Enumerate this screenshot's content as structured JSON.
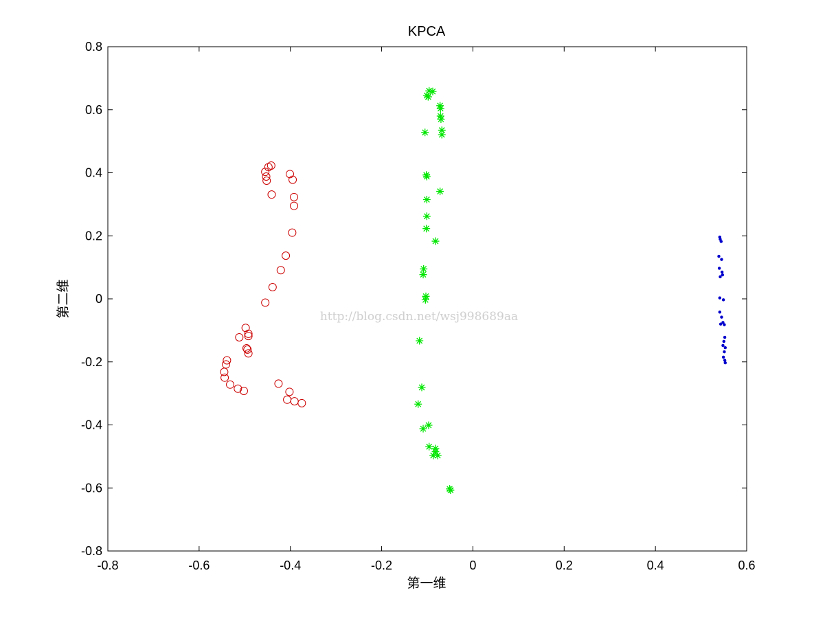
{
  "chart_data": {
    "type": "scatter",
    "title": "KPCA",
    "xlabel": "第一维",
    "ylabel": "第二维",
    "xlim": [
      -0.8,
      0.6
    ],
    "ylim": [
      -0.8,
      0.8
    ],
    "xticks": [
      -0.8,
      -0.6,
      -0.4,
      -0.2,
      0,
      0.2,
      0.4,
      0.6
    ],
    "xtick_labels": [
      "-0.8",
      "-0.6",
      "-0.4",
      "-0.2",
      "0",
      "0.2",
      "0.4",
      "0.6"
    ],
    "yticks": [
      -0.8,
      -0.6,
      -0.4,
      -0.2,
      0,
      0.2,
      0.4,
      0.6,
      0.8
    ],
    "ytick_labels": [
      "-0.8",
      "-0.6",
      "-0.4",
      "-0.2",
      "0",
      "0.2",
      "0.4",
      "0.6",
      "0.8"
    ],
    "grid": false,
    "legend": "none",
    "watermark": "http://blog.csdn.net/wsj998689aa",
    "series": [
      {
        "marker": "circle",
        "color": "#cc0000",
        "points": [
          [
            -0.455,
            0.403
          ],
          [
            -0.448,
            0.418
          ],
          [
            -0.442,
            0.423
          ],
          [
            -0.453,
            0.388
          ],
          [
            -0.452,
            0.375
          ],
          [
            -0.441,
            0.331
          ],
          [
            -0.401,
            0.396
          ],
          [
            -0.395,
            0.378
          ],
          [
            -0.392,
            0.323
          ],
          [
            -0.392,
            0.295
          ],
          [
            -0.396,
            0.21
          ],
          [
            -0.41,
            0.137
          ],
          [
            -0.421,
            0.091
          ],
          [
            -0.439,
            0.037
          ],
          [
            -0.455,
            -0.012
          ],
          [
            -0.498,
            -0.092
          ],
          [
            -0.492,
            -0.111
          ],
          [
            -0.492,
            -0.118
          ],
          [
            -0.512,
            -0.122
          ],
          [
            -0.496,
            -0.157
          ],
          [
            -0.494,
            -0.161
          ],
          [
            -0.492,
            -0.173
          ],
          [
            -0.539,
            -0.195
          ],
          [
            -0.541,
            -0.208
          ],
          [
            -0.545,
            -0.232
          ],
          [
            -0.544,
            -0.25
          ],
          [
            -0.532,
            -0.272
          ],
          [
            -0.515,
            -0.285
          ],
          [
            -0.502,
            -0.292
          ],
          [
            -0.426,
            -0.269
          ],
          [
            -0.402,
            -0.295
          ],
          [
            -0.407,
            -0.32
          ],
          [
            -0.391,
            -0.325
          ],
          [
            -0.375,
            -0.331
          ]
        ]
      },
      {
        "marker": "asterisk",
        "color": "#00e600",
        "points": [
          [
            -0.096,
            0.66
          ],
          [
            -0.088,
            0.658
          ],
          [
            -0.101,
            0.645
          ],
          [
            -0.098,
            0.641
          ],
          [
            -0.072,
            0.613
          ],
          [
            -0.071,
            0.604
          ],
          [
            -0.071,
            0.58
          ],
          [
            -0.07,
            0.57
          ],
          [
            -0.068,
            0.535
          ],
          [
            -0.068,
            0.521
          ],
          [
            -0.105,
            0.528
          ],
          [
            -0.102,
            0.393
          ],
          [
            -0.101,
            0.388
          ],
          [
            -0.072,
            0.341
          ],
          [
            -0.101,
            0.315
          ],
          [
            -0.101,
            0.262
          ],
          [
            -0.102,
            0.223
          ],
          [
            -0.082,
            0.183
          ],
          [
            -0.108,
            0.095
          ],
          [
            -0.109,
            0.077
          ],
          [
            -0.103,
            0.008
          ],
          [
            -0.104,
            -0.003
          ],
          [
            -0.117,
            -0.133
          ],
          [
            -0.112,
            -0.281
          ],
          [
            -0.12,
            -0.334
          ],
          [
            -0.109,
            -0.412
          ],
          [
            -0.097,
            -0.401
          ],
          [
            -0.096,
            -0.469
          ],
          [
            -0.082,
            -0.475
          ],
          [
            -0.082,
            -0.485
          ],
          [
            -0.087,
            -0.497
          ],
          [
            -0.077,
            -0.497
          ],
          [
            -0.051,
            -0.603
          ],
          [
            -0.049,
            -0.607
          ]
        ]
      },
      {
        "marker": "dot",
        "color": "#0000cc",
        "points": [
          [
            0.541,
            0.196
          ],
          [
            0.542,
            0.189
          ],
          [
            0.544,
            0.182
          ],
          [
            0.539,
            0.135
          ],
          [
            0.545,
            0.125
          ],
          [
            0.54,
            0.097
          ],
          [
            0.546,
            0.085
          ],
          [
            0.542,
            0.07
          ],
          [
            0.547,
            0.076
          ],
          [
            0.541,
            0.003
          ],
          [
            0.549,
            -0.003
          ],
          [
            0.541,
            -0.042
          ],
          [
            0.545,
            -0.058
          ],
          [
            0.548,
            -0.075
          ],
          [
            0.543,
            -0.08
          ],
          [
            0.551,
            -0.082
          ],
          [
            0.552,
            -0.122
          ],
          [
            0.55,
            -0.135
          ],
          [
            0.548,
            -0.148
          ],
          [
            0.553,
            -0.155
          ],
          [
            0.551,
            -0.168
          ],
          [
            0.549,
            -0.185
          ],
          [
            0.552,
            -0.195
          ],
          [
            0.553,
            -0.203
          ]
        ]
      }
    ]
  }
}
